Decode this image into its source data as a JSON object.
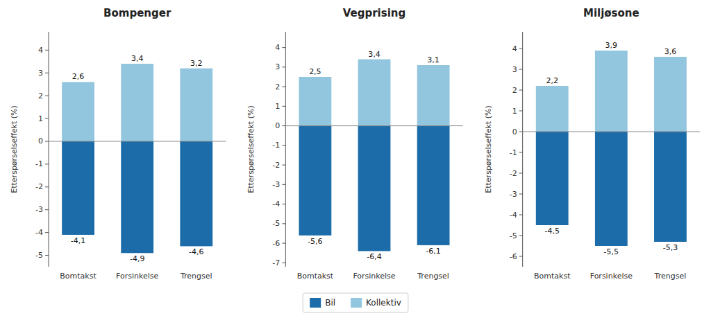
{
  "chart_data": [
    {
      "type": "bar",
      "title": "Bompenger",
      "categories": [
        "Bomtakst",
        "Forsinkelse",
        "Trengsel"
      ],
      "series": [
        {
          "name": "Bil",
          "color": "#1b6ca8",
          "values": [
            -4.1,
            -4.9,
            -4.6
          ],
          "value_labels": [
            "-4,1",
            "-4,9",
            "-4,6"
          ]
        },
        {
          "name": "Kollektiv",
          "color": "#92c5de",
          "values": [
            2.6,
            3.4,
            3.2
          ],
          "value_labels": [
            "2,6",
            "3,4",
            "3,2"
          ]
        }
      ],
      "ylabel": "Etterspørselseffekt (%)",
      "ylim": [
        -5.5,
        4.8
      ],
      "yticks": [
        -5,
        -4,
        -3,
        -2,
        -1,
        0,
        1,
        2,
        3,
        4
      ],
      "stacked": true,
      "data_labels": true,
      "grid": false,
      "legend": "bottom"
    },
    {
      "type": "bar",
      "title": "Vegprising",
      "categories": [
        "Bomtakst",
        "Forsinkelse",
        "Trengsel"
      ],
      "series": [
        {
          "name": "Bil",
          "color": "#1b6ca8",
          "values": [
            -5.6,
            -6.4,
            -6.1
          ],
          "value_labels": [
            "-5,6",
            "-6,4",
            "-6,1"
          ]
        },
        {
          "name": "Kollektiv",
          "color": "#92c5de",
          "values": [
            2.5,
            3.4,
            3.1
          ],
          "value_labels": [
            "2,5",
            "3,4",
            "3,1"
          ]
        }
      ],
      "ylabel": "Etterspørselseffekt (%)",
      "ylim": [
        -7.2,
        4.8
      ],
      "yticks": [
        -7,
        -6,
        -5,
        -4,
        -3,
        -2,
        -1,
        0,
        1,
        2,
        3,
        4
      ],
      "stacked": true,
      "data_labels": true,
      "grid": false
    },
    {
      "type": "bar",
      "title": "Miljøsone",
      "categories": [
        "Bomtakst",
        "Forsinkelse",
        "Trengsel"
      ],
      "series": [
        {
          "name": "Bil",
          "color": "#1b6ca8",
          "values": [
            -4.5,
            -5.5,
            -5.3
          ],
          "value_labels": [
            "-4,5",
            "-5,5",
            "-5,3"
          ]
        },
        {
          "name": "Kollektiv",
          "color": "#92c5de",
          "values": [
            2.2,
            3.9,
            3.6
          ],
          "value_labels": [
            "2,2",
            "3,9",
            "3,6"
          ]
        }
      ],
      "ylabel": "Etterspørselseffekt (%)",
      "ylim": [
        -6.5,
        4.8
      ],
      "yticks": [
        -6,
        -5,
        -4,
        -3,
        -2,
        -1,
        0,
        1,
        2,
        3,
        4
      ],
      "stacked": true,
      "data_labels": true,
      "grid": false
    }
  ]
}
